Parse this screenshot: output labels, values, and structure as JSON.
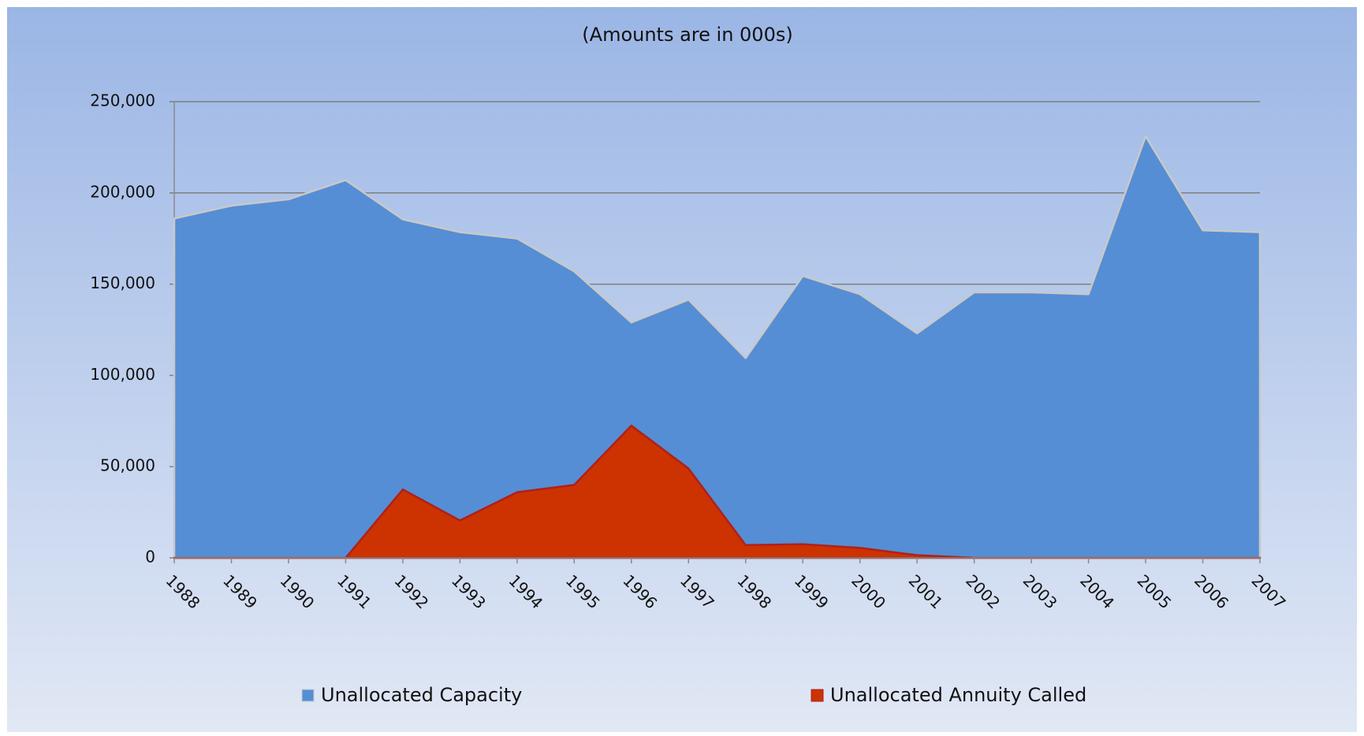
{
  "chart_data": {
    "type": "area",
    "title": "(Amounts are in 000s)",
    "categories": [
      "1988",
      "1989",
      "1990",
      "1991",
      "1992",
      "1993",
      "1994",
      "1995",
      "1996",
      "1997",
      "1998",
      "1999",
      "2000",
      "2001",
      "2002",
      "2003",
      "2004",
      "2005",
      "2006",
      "2007"
    ],
    "series": [
      {
        "name": "Unallocated Capacity",
        "color": "#558ed5",
        "values": [
          186000,
          193000,
          196500,
          207000,
          185500,
          178500,
          175000,
          157000,
          129000,
          141500,
          109500,
          154500,
          144500,
          123000,
          145500,
          145500,
          144500,
          231000,
          179500,
          178500
        ]
      },
      {
        "name": "Unallocated Annuity Called",
        "color": "#cc3300",
        "values": [
          0,
          0,
          0,
          0,
          37500,
          20500,
          36000,
          40000,
          72500,
          49000,
          7000,
          7500,
          5500,
          1500,
          0,
          0,
          0,
          0,
          0,
          0
        ]
      }
    ],
    "ylim": [
      0,
      250000
    ],
    "yticks": [
      0,
      {
        "value": 50000,
        "label": "50,000"
      },
      {
        "value": 100000,
        "label": "100,000"
      },
      {
        "value": 150000,
        "label": "150,000"
      },
      {
        "value": 200000,
        "label": "200,000"
      },
      {
        "value": 250000,
        "label": "250,000"
      }
    ],
    "grid": true,
    "legend": "bottom"
  }
}
